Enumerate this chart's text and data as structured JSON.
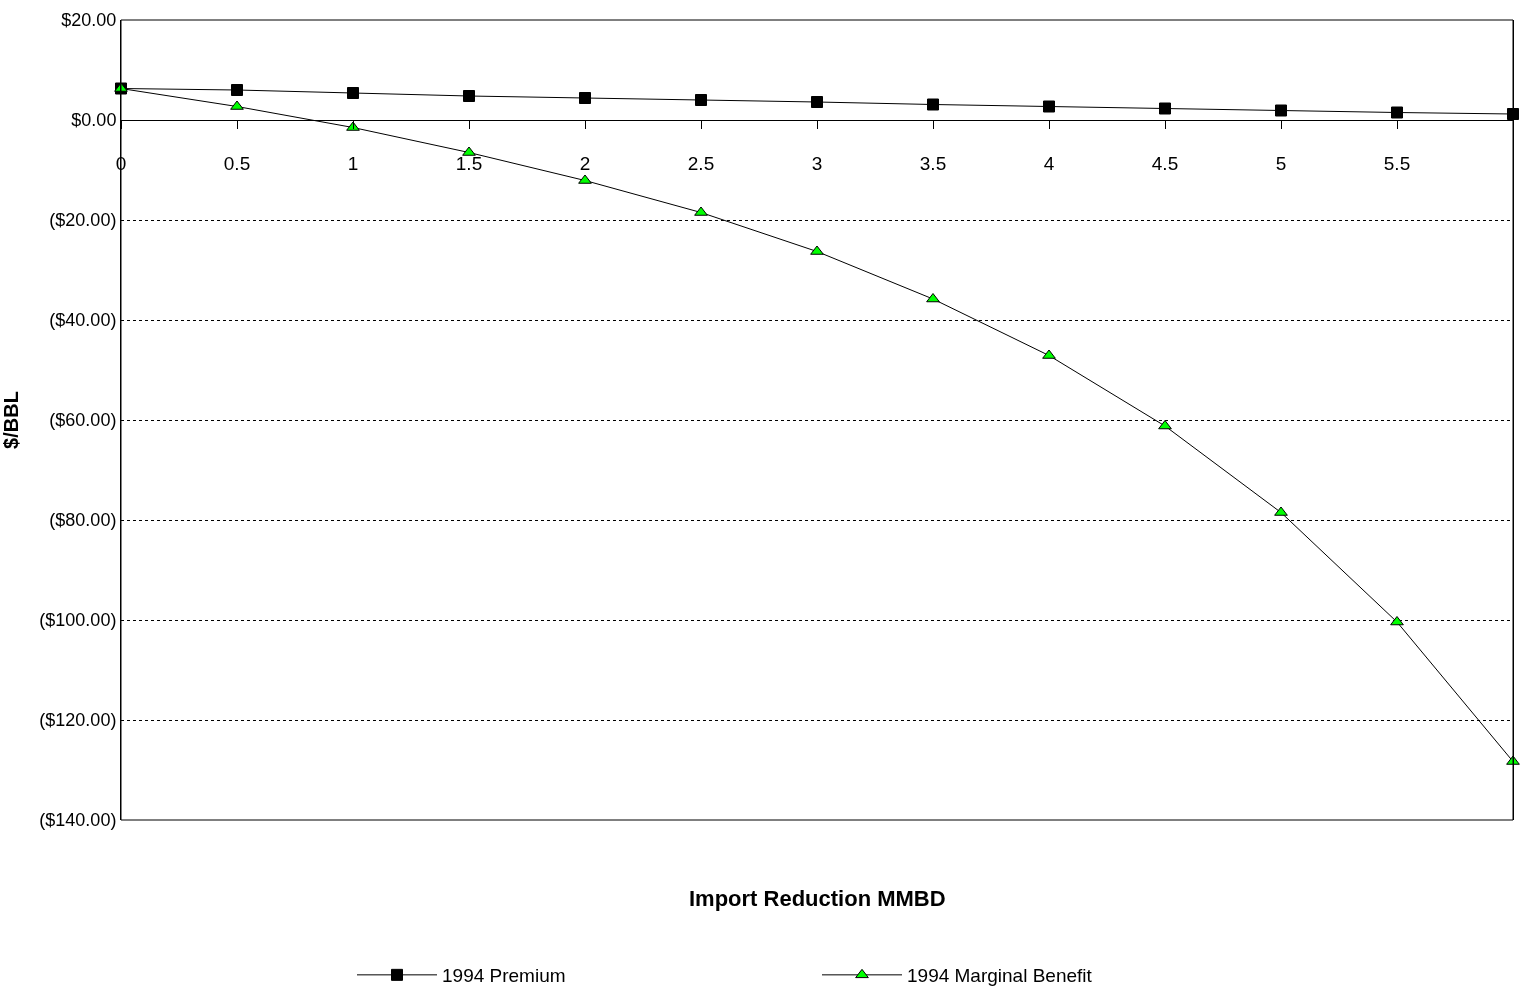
{
  "chart_data": {
    "type": "line",
    "xlabel": "Import Reduction MMBD",
    "ylabel": "$/BBL",
    "x": [
      0,
      0.5,
      1,
      1.5,
      2,
      2.5,
      3,
      3.5,
      4,
      4.5,
      5,
      5.5,
      6
    ],
    "series": [
      {
        "name": "1994 Premium",
        "color": "#000000",
        "marker": "square",
        "values": [
          6.3,
          6.0,
          5.4,
          4.8,
          4.4,
          4.0,
          3.6,
          3.1,
          2.7,
          2.3,
          1.9,
          1.5,
          1.2
        ]
      },
      {
        "name": "1994 Marginal Benefit",
        "color": "#00ff00",
        "marker": "triangle",
        "values": [
          6.3,
          2.7,
          -1.5,
          -6.5,
          -12.1,
          -18.5,
          -26.3,
          -35.8,
          -47.1,
          -61.2,
          -78.5,
          -100.4,
          -128.3
        ]
      }
    ],
    "xlim": [
      0,
      6
    ],
    "xticks": [
      0,
      0.5,
      1,
      1.5,
      2,
      2.5,
      3,
      3.5,
      4,
      4.5,
      5,
      5.5
    ],
    "ylim": [
      -140,
      20
    ],
    "yticks": [
      {
        "value": 20,
        "label": "$20.00"
      },
      {
        "value": 0,
        "label": "$0.00"
      },
      {
        "value": -20,
        "label": "($20.00)"
      },
      {
        "value": -40,
        "label": "($40.00)"
      },
      {
        "value": -60,
        "label": "($60.00)"
      },
      {
        "value": -80,
        "label": "($80.00)"
      },
      {
        "value": -100,
        "label": "($100.00)"
      },
      {
        "value": -120,
        "label": "($120.00)"
      },
      {
        "value": -140,
        "label": "($140.00)"
      }
    ],
    "grid": "y",
    "legend": "bottom",
    "line_style": "solid"
  }
}
